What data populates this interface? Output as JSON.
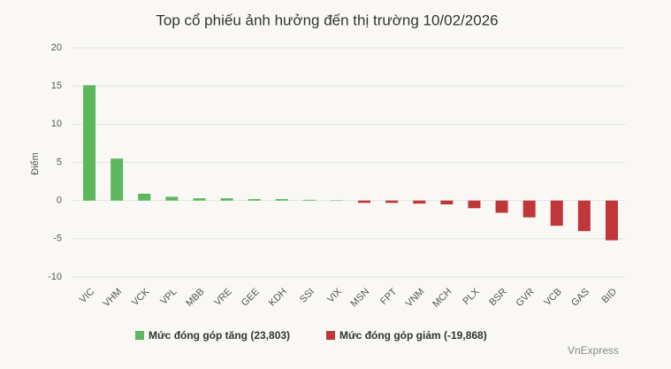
{
  "chart_data": {
    "type": "bar",
    "title": "Top cổ phiếu ảnh hưởng đến thị trường 10/02/2026",
    "y_label": "Điểm",
    "source": "VnExpress",
    "categories": [
      "VIC",
      "VHM",
      "VCK",
      "VPL",
      "MBB",
      "VRE",
      "GEE",
      "KDH",
      "SSI",
      "VIX",
      "MSN",
      "FPT",
      "VNM",
      "MCH",
      "PLX",
      "BSR",
      "GVR",
      "VCB",
      "GAS",
      "BID"
    ],
    "series": [
      {
        "name": "Mức đóng góp tăng (23,803)",
        "color": "#5cb85c",
        "values": [
          15.1,
          5.5,
          0.9,
          0.5,
          0.3,
          0.3,
          0.2,
          0.2,
          0.1,
          0.05,
          null,
          null,
          null,
          null,
          null,
          null,
          null,
          null,
          null,
          null
        ]
      },
      {
        "name": "Mức đóng góp giảm (-19,868)",
        "color": "#c0373a",
        "values": [
          null,
          null,
          null,
          null,
          null,
          null,
          null,
          null,
          null,
          null,
          -0.3,
          -0.3,
          -0.4,
          -0.5,
          -1.0,
          -1.6,
          -2.2,
          -3.3,
          -4.0,
          -5.2
        ]
      }
    ],
    "ylim": [
      -10,
      20
    ],
    "yticks": [
      -10,
      -5,
      0,
      5,
      10,
      15,
      20
    ],
    "grid": true
  }
}
